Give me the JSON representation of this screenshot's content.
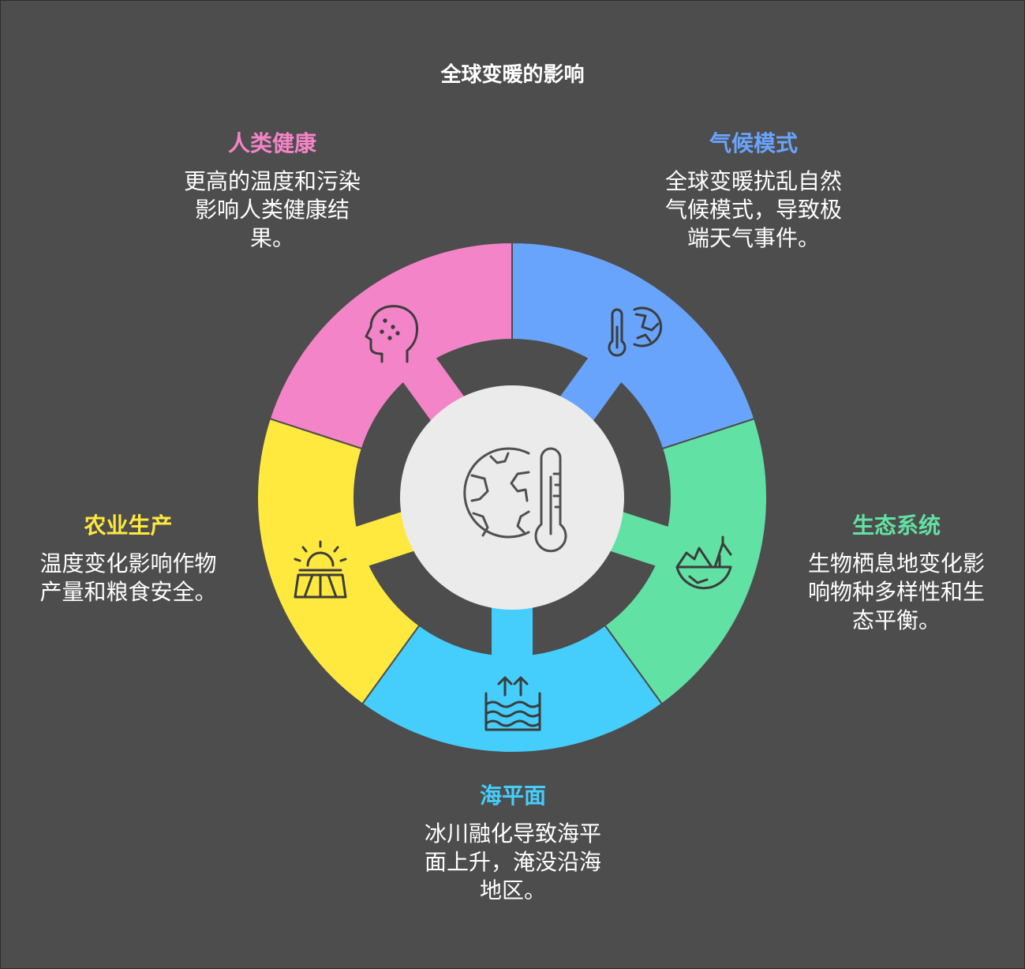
{
  "title": "全球变暖的影响",
  "center_icon": "globe-thermometer-icon",
  "segments": [
    {
      "key": "health",
      "heading": "人类健康",
      "text": [
        "更高的温度和污染",
        "影响人类健康结",
        "果。"
      ],
      "color": "#f484c8",
      "icon": "human-head-icon"
    },
    {
      "key": "climate",
      "heading": "气候模式",
      "text": [
        "全球变暖扰乱自然",
        "气候模式，导致极",
        "端天气事件。"
      ],
      "color": "#68a4fb",
      "icon": "thermometer-globe-icon"
    },
    {
      "key": "eco",
      "heading": "生态系统",
      "text": [
        "生物栖息地变化影",
        "响物种多样性和生",
        "态平衡。"
      ],
      "color": "#62e1a4",
      "icon": "ecosystem-icon"
    },
    {
      "key": "sea",
      "heading": "海平面",
      "text": [
        "冰川融化导致海平",
        "面上升，淹没沿海",
        "地区。"
      ],
      "color": "#45cefc",
      "icon": "rising-water-icon"
    },
    {
      "key": "agri",
      "heading": "农业生产",
      "text": [
        "温度变化影响作物",
        "产量和粮食安全。"
      ],
      "color": "#ffe93f",
      "icon": "sun-field-icon"
    }
  ]
}
